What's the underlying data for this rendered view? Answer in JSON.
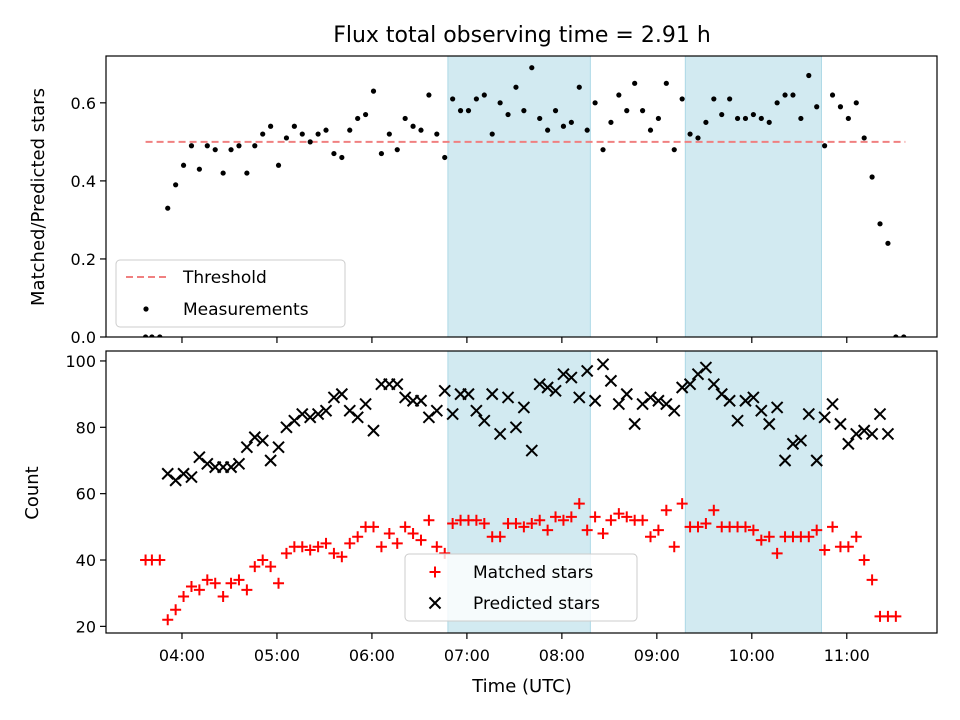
{
  "title": "Flux total observing time = 2.91 h",
  "colors": {
    "shade": "#add8e6",
    "threshold": "#f08080",
    "measurement": "#000000",
    "matched": "#ff0000",
    "predicted": "#000000"
  },
  "chart_data": [
    {
      "type": "scatter",
      "ylabel": "Matched/Predicted stars",
      "ylim": [
        0,
        0.72
      ],
      "yticks": [
        0.0,
        0.2,
        0.4,
        0.6
      ],
      "ytick_labels": [
        "0.0",
        "0.2",
        "0.4",
        "0.6"
      ],
      "threshold": 0.5,
      "threshold_x": [
        "03:37",
        "11:37"
      ],
      "legend": {
        "location": "lower left",
        "threshold_label": "Threshold",
        "measurements_label": "Measurements"
      },
      "measurements": [
        [
          "03:37",
          0
        ],
        [
          "03:41",
          0
        ],
        [
          "03:46",
          0
        ],
        [
          "03:51",
          0.33
        ],
        [
          "03:56",
          0.39
        ],
        [
          "04:01",
          0.44
        ],
        [
          "04:06",
          0.49
        ],
        [
          "04:11",
          0.43
        ],
        [
          "04:16",
          0.49
        ],
        [
          "04:21",
          0.48
        ],
        [
          "04:26",
          0.42
        ],
        [
          "04:31",
          0.48
        ],
        [
          "04:36",
          0.49
        ],
        [
          "04:41",
          0.42
        ],
        [
          "04:46",
          0.49
        ],
        [
          "04:51",
          0.52
        ],
        [
          "04:56",
          0.54
        ],
        [
          "05:01",
          0.44
        ],
        [
          "05:06",
          0.51
        ],
        [
          "05:11",
          0.54
        ],
        [
          "05:16",
          0.52
        ],
        [
          "05:21",
          0.5
        ],
        [
          "05:26",
          0.52
        ],
        [
          "05:31",
          0.53
        ],
        [
          "05:36",
          0.47
        ],
        [
          "05:41",
          0.46
        ],
        [
          "05:46",
          0.53
        ],
        [
          "05:51",
          0.56
        ],
        [
          "05:56",
          0.57
        ],
        [
          "06:01",
          0.63
        ],
        [
          "06:06",
          0.47
        ],
        [
          "06:11",
          0.52
        ],
        [
          "06:16",
          0.48
        ],
        [
          "06:21",
          0.56
        ],
        [
          "06:26",
          0.54
        ],
        [
          "06:31",
          0.53
        ],
        [
          "06:36",
          0.62
        ],
        [
          "06:41",
          0.52
        ],
        [
          "06:46",
          0.46
        ],
        [
          "06:51",
          0.61
        ],
        [
          "06:56",
          0.58
        ],
        [
          "07:01",
          0.58
        ],
        [
          "07:06",
          0.61
        ],
        [
          "07:11",
          0.62
        ],
        [
          "07:16",
          0.52
        ],
        [
          "07:21",
          0.6
        ],
        [
          "07:26",
          0.57
        ],
        [
          "07:31",
          0.64
        ],
        [
          "07:36",
          0.58
        ],
        [
          "07:41",
          0.69
        ],
        [
          "07:46",
          0.56
        ],
        [
          "07:51",
          0.53
        ],
        [
          "07:56",
          0.58
        ],
        [
          "08:01",
          0.54
        ],
        [
          "08:06",
          0.55
        ],
        [
          "08:11",
          0.64
        ],
        [
          "08:16",
          0.53
        ],
        [
          "08:21",
          0.6
        ],
        [
          "08:26",
          0.48
        ],
        [
          "08:31",
          0.55
        ],
        [
          "08:36",
          0.62
        ],
        [
          "08:41",
          0.58
        ],
        [
          "08:46",
          0.65
        ],
        [
          "08:51",
          0.58
        ],
        [
          "08:56",
          0.53
        ],
        [
          "09:01",
          0.56
        ],
        [
          "09:06",
          0.65
        ],
        [
          "09:11",
          0.48
        ],
        [
          "09:16",
          0.61
        ],
        [
          "09:21",
          0.52
        ],
        [
          "09:26",
          0.51
        ],
        [
          "09:31",
          0.55
        ],
        [
          "09:36",
          0.61
        ],
        [
          "09:41",
          0.57
        ],
        [
          "09:46",
          0.61
        ],
        [
          "09:51",
          0.56
        ],
        [
          "09:56",
          0.56
        ],
        [
          "10:01",
          0.57
        ],
        [
          "10:06",
          0.56
        ],
        [
          "10:11",
          0.55
        ],
        [
          "10:16",
          0.6
        ],
        [
          "10:21",
          0.62
        ],
        [
          "10:26",
          0.62
        ],
        [
          "10:31",
          0.56
        ],
        [
          "10:36",
          0.67
        ],
        [
          "10:41",
          0.59
        ],
        [
          "10:46",
          0.49
        ],
        [
          "10:51",
          0.62
        ],
        [
          "10:56",
          0.59
        ],
        [
          "11:01",
          0.56
        ],
        [
          "11:06",
          0.6
        ],
        [
          "11:11",
          0.51
        ],
        [
          "11:16",
          0.41
        ],
        [
          "11:21",
          0.29
        ],
        [
          "11:26",
          0.24
        ],
        [
          "11:31",
          0
        ],
        [
          "11:36",
          0
        ]
      ]
    },
    {
      "type": "scatter",
      "xlabel": "Time (UTC)",
      "ylabel": "Count",
      "ylim": [
        18,
        103
      ],
      "yticks": [
        20,
        40,
        60,
        80,
        100
      ],
      "ytick_labels": [
        "20",
        "40",
        "60",
        "80",
        "100"
      ],
      "legend": {
        "location": "lower center",
        "matched_label": "Matched stars",
        "predicted_label": "Predicted stars"
      },
      "matched": [
        [
          "03:37",
          40
        ],
        [
          "03:41",
          40
        ],
        [
          "03:46",
          40
        ],
        [
          "03:51",
          22
        ],
        [
          "03:56",
          25
        ],
        [
          "04:01",
          29
        ],
        [
          "04:06",
          32
        ],
        [
          "04:11",
          31
        ],
        [
          "04:16",
          34
        ],
        [
          "04:21",
          33
        ],
        [
          "04:26",
          29
        ],
        [
          "04:31",
          33
        ],
        [
          "04:36",
          34
        ],
        [
          "04:41",
          31
        ],
        [
          "04:46",
          38
        ],
        [
          "04:51",
          40
        ],
        [
          "04:56",
          38
        ],
        [
          "05:01",
          33
        ],
        [
          "05:06",
          42
        ],
        [
          "05:11",
          44
        ],
        [
          "05:16",
          44
        ],
        [
          "05:21",
          43
        ],
        [
          "05:26",
          44
        ],
        [
          "05:31",
          45
        ],
        [
          "05:36",
          42
        ],
        [
          "05:41",
          41
        ],
        [
          "05:46",
          45
        ],
        [
          "05:51",
          47
        ],
        [
          "05:56",
          50
        ],
        [
          "06:01",
          50
        ],
        [
          "06:06",
          44
        ],
        [
          "06:11",
          48
        ],
        [
          "06:16",
          45
        ],
        [
          "06:21",
          50
        ],
        [
          "06:26",
          48
        ],
        [
          "06:31",
          46
        ],
        [
          "06:36",
          52
        ],
        [
          "06:41",
          44
        ],
        [
          "06:46",
          42
        ],
        [
          "06:51",
          51
        ],
        [
          "06:56",
          52
        ],
        [
          "07:01",
          52
        ],
        [
          "07:06",
          52
        ],
        [
          "07:11",
          51
        ],
        [
          "07:16",
          47
        ],
        [
          "07:21",
          47
        ],
        [
          "07:26",
          51
        ],
        [
          "07:31",
          51
        ],
        [
          "07:36",
          50
        ],
        [
          "07:41",
          51
        ],
        [
          "07:46",
          52
        ],
        [
          "07:51",
          49
        ],
        [
          "07:56",
          53
        ],
        [
          "08:01",
          52
        ],
        [
          "08:06",
          53
        ],
        [
          "08:11",
          57
        ],
        [
          "08:16",
          49
        ],
        [
          "08:21",
          53
        ],
        [
          "08:26",
          48
        ],
        [
          "08:31",
          52
        ],
        [
          "08:36",
          54
        ],
        [
          "08:41",
          53
        ],
        [
          "08:46",
          52
        ],
        [
          "08:51",
          52
        ],
        [
          "08:56",
          47
        ],
        [
          "09:01",
          49
        ],
        [
          "09:06",
          55
        ],
        [
          "09:11",
          44
        ],
        [
          "09:16",
          57
        ],
        [
          "09:21",
          50
        ],
        [
          "09:26",
          50
        ],
        [
          "09:31",
          51
        ],
        [
          "09:36",
          55
        ],
        [
          "09:41",
          50
        ],
        [
          "09:46",
          50
        ],
        [
          "09:51",
          50
        ],
        [
          "09:56",
          50
        ],
        [
          "10:01",
          49
        ],
        [
          "10:06",
          46
        ],
        [
          "10:11",
          47
        ],
        [
          "10:16",
          42
        ],
        [
          "10:21",
          47
        ],
        [
          "10:26",
          47
        ],
        [
          "10:31",
          47
        ],
        [
          "10:36",
          47
        ],
        [
          "10:41",
          49
        ],
        [
          "10:46",
          43
        ],
        [
          "10:51",
          50
        ],
        [
          "10:56",
          44
        ],
        [
          "11:01",
          44
        ],
        [
          "11:06",
          47
        ],
        [
          "11:11",
          40
        ],
        [
          "11:16",
          34
        ],
        [
          "11:21",
          23
        ],
        [
          "11:26",
          23
        ],
        [
          "11:31",
          23
        ]
      ],
      "predicted": [
        [
          "03:51",
          66
        ],
        [
          "03:56",
          64
        ],
        [
          "04:01",
          66
        ],
        [
          "04:06",
          65
        ],
        [
          "04:11",
          71
        ],
        [
          "04:16",
          69
        ],
        [
          "04:21",
          68
        ],
        [
          "04:26",
          68
        ],
        [
          "04:31",
          68
        ],
        [
          "04:36",
          69
        ],
        [
          "04:41",
          74
        ],
        [
          "04:46",
          77
        ],
        [
          "04:51",
          76
        ],
        [
          "04:56",
          70
        ],
        [
          "05:01",
          74
        ],
        [
          "05:06",
          80
        ],
        [
          "05:11",
          82
        ],
        [
          "05:16",
          84
        ],
        [
          "05:21",
          83
        ],
        [
          "05:26",
          84
        ],
        [
          "05:31",
          85
        ],
        [
          "05:36",
          89
        ],
        [
          "05:41",
          90
        ],
        [
          "05:46",
          85
        ],
        [
          "05:51",
          83
        ],
        [
          "05:56",
          87
        ],
        [
          "06:01",
          79
        ],
        [
          "06:06",
          93
        ],
        [
          "06:11",
          93
        ],
        [
          "06:16",
          93
        ],
        [
          "06:21",
          89
        ],
        [
          "06:26",
          88
        ],
        [
          "06:31",
          88
        ],
        [
          "06:36",
          83
        ],
        [
          "06:41",
          85
        ],
        [
          "06:46",
          91
        ],
        [
          "06:51",
          84
        ],
        [
          "06:56",
          90
        ],
        [
          "07:01",
          90
        ],
        [
          "07:06",
          85
        ],
        [
          "07:11",
          82
        ],
        [
          "07:16",
          90
        ],
        [
          "07:21",
          78
        ],
        [
          "07:26",
          89
        ],
        [
          "07:31",
          80
        ],
        [
          "07:36",
          86
        ],
        [
          "07:41",
          73
        ],
        [
          "07:46",
          93
        ],
        [
          "07:51",
          92
        ],
        [
          "07:56",
          91
        ],
        [
          "08:01",
          96
        ],
        [
          "08:06",
          95
        ],
        [
          "08:11",
          89
        ],
        [
          "08:16",
          97
        ],
        [
          "08:21",
          88
        ],
        [
          "08:26",
          99
        ],
        [
          "08:31",
          94
        ],
        [
          "08:36",
          87
        ],
        [
          "08:41",
          90
        ],
        [
          "08:46",
          81
        ],
        [
          "08:51",
          87
        ],
        [
          "08:56",
          89
        ],
        [
          "09:01",
          88
        ],
        [
          "09:06",
          87
        ],
        [
          "09:11",
          85
        ],
        [
          "09:16",
          92
        ],
        [
          "09:21",
          93
        ],
        [
          "09:26",
          96
        ],
        [
          "09:31",
          98
        ],
        [
          "09:36",
          93
        ],
        [
          "09:41",
          90
        ],
        [
          "09:46",
          88
        ],
        [
          "09:51",
          82
        ],
        [
          "09:56",
          88
        ],
        [
          "10:01",
          89
        ],
        [
          "10:06",
          85
        ],
        [
          "10:11",
          81
        ],
        [
          "10:16",
          86
        ],
        [
          "10:21",
          70
        ],
        [
          "10:26",
          75
        ],
        [
          "10:31",
          76
        ],
        [
          "10:36",
          84
        ],
        [
          "10:41",
          70
        ],
        [
          "10:46",
          83
        ],
        [
          "10:51",
          87
        ],
        [
          "10:56",
          81
        ],
        [
          "11:01",
          75
        ],
        [
          "11:06",
          78
        ],
        [
          "11:11",
          79
        ],
        [
          "11:16",
          78
        ],
        [
          "11:21",
          84
        ],
        [
          "11:26",
          78
        ]
      ]
    }
  ],
  "x_axis": {
    "xlim": [
      "03:12",
      "11:57"
    ],
    "ticks": [
      "04:00",
      "05:00",
      "06:00",
      "07:00",
      "08:00",
      "09:00",
      "10:00",
      "11:00"
    ],
    "shaded_intervals": [
      [
        "06:48",
        "08:18"
      ],
      [
        "09:18",
        "10:44"
      ]
    ]
  }
}
